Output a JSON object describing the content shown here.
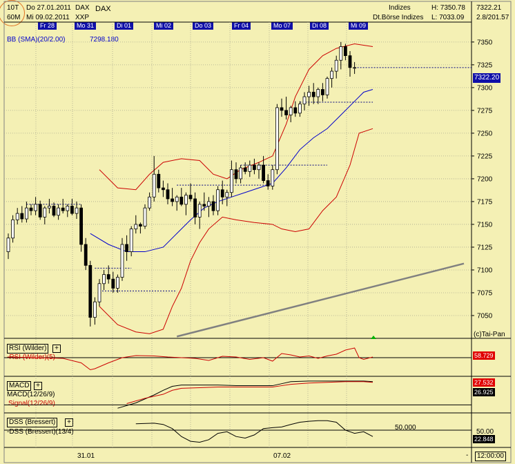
{
  "header": {
    "interval_top": "10T",
    "interval_bottom": "60M",
    "date_from": "Do 27.01.2011",
    "date_to": "Mi 09.02.2011",
    "symbol": "DAX",
    "exchange": "XXP",
    "symbol_right": "DAX",
    "category": "Indizes",
    "category_full": "Dt.Börse Indizes",
    "high": "H: 7350.78",
    "low": "L: 7033.09",
    "last": "7322.21",
    "change": "2.8/201.57"
  },
  "day_tabs": [
    "Fr 28",
    "Mo 31",
    "Di 01",
    "Mi 02",
    "Do 03",
    "Fr 04",
    "Mo 07",
    "Di 08",
    "Mi 09"
  ],
  "bb_label": "BB (SMA)(20/2.00)",
  "bb_value": "7298.180",
  "price_box": "7322.20",
  "copyright": "(c)Tai-Pan",
  "x_labels": [
    "31.01",
    "07.02"
  ],
  "time_box": "12:00:00",
  "rsi": {
    "title": "RSI (Wilder)",
    "line_label": "-RSI (Wilder)(5)",
    "value": "58.729"
  },
  "macd": {
    "title": "MACD",
    "line1": "MACD(12/26/9)",
    "line2": "Signal(12/26/9)",
    "value1": "27.532",
    "value2": "26.925"
  },
  "dss": {
    "title": "DSS (Bressert)",
    "line_label": "-DSS (Bressert)(13/4)",
    "level_label": "50.000",
    "scale_label": "50.00",
    "value": "22.848"
  },
  "colors": {
    "background": "#F4F0B4",
    "tab": "#1010A8",
    "bb": "#CC0000",
    "sma": "#0000CC",
    "trend": "#808080"
  },
  "chart_data": {
    "type": "candlestick",
    "ylim": [
      7025,
      7362
    ],
    "yticks": [
      7050,
      7075,
      7100,
      7125,
      7150,
      7175,
      7200,
      7225,
      7250,
      7275,
      7300,
      7325,
      7350
    ],
    "candles": [
      [
        7120,
        7140,
        7112,
        7135
      ],
      [
        7135,
        7160,
        7130,
        7155
      ],
      [
        7155,
        7168,
        7150,
        7162
      ],
      [
        7162,
        7170,
        7152,
        7156
      ],
      [
        7156,
        7175,
        7152,
        7168
      ],
      [
        7168,
        7172,
        7160,
        7165
      ],
      [
        7165,
        7180,
        7160,
        7172
      ],
      [
        7172,
        7176,
        7155,
        7158
      ],
      [
        7158,
        7170,
        7150,
        7168
      ],
      [
        7168,
        7178,
        7162,
        7170
      ],
      [
        7170,
        7174,
        7158,
        7160
      ],
      [
        7160,
        7172,
        7155,
        7168
      ],
      [
        7168,
        7178,
        7162,
        7165
      ],
      [
        7165,
        7172,
        7158,
        7170
      ],
      [
        7170,
        7178,
        7160,
        7162
      ],
      [
        7162,
        7175,
        7156,
        7168
      ],
      [
        7168,
        7172,
        7120,
        7128
      ],
      [
        7128,
        7135,
        7100,
        7105
      ],
      [
        7105,
        7110,
        7038,
        7048
      ],
      [
        7048,
        7070,
        7040,
        7065
      ],
      [
        7065,
        7090,
        7060,
        7085
      ],
      [
        7085,
        7100,
        7078,
        7095
      ],
      [
        7095,
        7105,
        7085,
        7090
      ],
      [
        7090,
        7098,
        7075,
        7080
      ],
      [
        7080,
        7095,
        7075,
        7092
      ],
      [
        7092,
        7135,
        7088,
        7128
      ],
      [
        7128,
        7138,
        7110,
        7120
      ],
      [
        7120,
        7148,
        7115,
        7145
      ],
      [
        7145,
        7160,
        7140,
        7150
      ],
      [
        7150,
        7152,
        7140,
        7148
      ],
      [
        7148,
        7172,
        7145,
        7168
      ],
      [
        7168,
        7185,
        7165,
        7180
      ],
      [
        7180,
        7225,
        7175,
        7205
      ],
      [
        7205,
        7210,
        7185,
        7190
      ],
      [
        7190,
        7198,
        7180,
        7188
      ],
      [
        7188,
        7195,
        7172,
        7178
      ],
      [
        7178,
        7190,
        7170,
        7175
      ],
      [
        7175,
        7182,
        7165,
        7180
      ],
      [
        7180,
        7190,
        7170,
        7172
      ],
      [
        7172,
        7185,
        7160,
        7182
      ],
      [
        7182,
        7195,
        7175,
        7178
      ],
      [
        7178,
        7185,
        7150,
        7158
      ],
      [
        7158,
        7175,
        7145,
        7172
      ],
      [
        7172,
        7185,
        7165,
        7170
      ],
      [
        7170,
        7180,
        7158,
        7175
      ],
      [
        7175,
        7182,
        7160,
        7165
      ],
      [
        7165,
        7192,
        7160,
        7188
      ],
      [
        7188,
        7198,
        7172,
        7180
      ],
      [
        7180,
        7188,
        7170,
        7185
      ],
      [
        7185,
        7220,
        7180,
        7210
      ],
      [
        7210,
        7218,
        7195,
        7200
      ],
      [
        7200,
        7215,
        7195,
        7212
      ],
      [
        7212,
        7218,
        7205,
        7208
      ],
      [
        7208,
        7220,
        7202,
        7215
      ],
      [
        7215,
        7222,
        7205,
        7210
      ],
      [
        7210,
        7218,
        7200,
        7215
      ],
      [
        7215,
        7225,
        7195,
        7198
      ],
      [
        7198,
        7205,
        7188,
        7192
      ],
      [
        7192,
        7215,
        7188,
        7210
      ],
      [
        7210,
        7282,
        7205,
        7278
      ],
      [
        7278,
        7288,
        7268,
        7275
      ],
      [
        7275,
        7290,
        7265,
        7270
      ],
      [
        7270,
        7280,
        7262,
        7278
      ],
      [
        7278,
        7285,
        7268,
        7272
      ],
      [
        7272,
        7285,
        7268,
        7282
      ],
      [
        7282,
        7295,
        7275,
        7290
      ],
      [
        7290,
        7302,
        7280,
        7295
      ],
      [
        7295,
        7305,
        7282,
        7290
      ],
      [
        7290,
        7300,
        7282,
        7298
      ],
      [
        7298,
        7305,
        7285,
        7292
      ],
      [
        7292,
        7312,
        7288,
        7310
      ],
      [
        7310,
        7322,
        7300,
        7318
      ],
      [
        7318,
        7335,
        7310,
        7330
      ],
      [
        7330,
        7350,
        7320,
        7345
      ],
      [
        7345,
        7348,
        7330,
        7335
      ],
      [
        7335,
        7340,
        7312,
        7322
      ],
      [
        7322,
        7328,
        7315,
        7322
      ]
    ],
    "dotted_levels": [
      {
        "y": 7172,
        "from": 4,
        "to": 16
      },
      {
        "y": 7102,
        "from": 19,
        "to": 27
      },
      {
        "y": 7077,
        "from": 20,
        "to": 37
      },
      {
        "y": 7193,
        "from": 37,
        "to": 58
      },
      {
        "y": 7215,
        "from": 51,
        "to": 70
      },
      {
        "y": 7284,
        "from": 64,
        "to": 80
      },
      {
        "y": 7322,
        "from": 76,
        "to": 104
      }
    ],
    "bb_upper": [
      [
        20,
        7210
      ],
      [
        24,
        7190
      ],
      [
        28,
        7188
      ],
      [
        31,
        7205
      ],
      [
        34,
        7218
      ],
      [
        38,
        7222
      ],
      [
        42,
        7220
      ],
      [
        45,
        7205
      ],
      [
        48,
        7200
      ],
      [
        51,
        7210
      ],
      [
        55,
        7218
      ],
      [
        58,
        7225
      ],
      [
        61,
        7260
      ],
      [
        63,
        7290
      ],
      [
        66,
        7320
      ],
      [
        69,
        7335
      ],
      [
        72,
        7343
      ],
      [
        76,
        7348
      ],
      [
        80,
        7345
      ]
    ],
    "bb_lower": [
      [
        20,
        7060
      ],
      [
        24,
        7040
      ],
      [
        28,
        7032
      ],
      [
        31,
        7030
      ],
      [
        34,
        7035
      ],
      [
        36,
        7060
      ],
      [
        38,
        7080
      ],
      [
        40,
        7110
      ],
      [
        42,
        7130
      ],
      [
        44,
        7145
      ],
      [
        47,
        7158
      ],
      [
        50,
        7155
      ],
      [
        54,
        7152
      ],
      [
        58,
        7150
      ],
      [
        60,
        7145
      ],
      [
        63,
        7142
      ],
      [
        66,
        7145
      ],
      [
        69,
        7165
      ],
      [
        72,
        7180
      ],
      [
        75,
        7215
      ],
      [
        77,
        7250
      ],
      [
        80,
        7255
      ]
    ],
    "sma": [
      [
        18,
        7140
      ],
      [
        22,
        7128
      ],
      [
        26,
        7120
      ],
      [
        30,
        7120
      ],
      [
        34,
        7125
      ],
      [
        37,
        7140
      ],
      [
        40,
        7155
      ],
      [
        43,
        7168
      ],
      [
        46,
        7175
      ],
      [
        49,
        7180
      ],
      [
        52,
        7185
      ],
      [
        55,
        7190
      ],
      [
        58,
        7195
      ],
      [
        61,
        7212
      ],
      [
        64,
        7232
      ],
      [
        67,
        7245
      ],
      [
        70,
        7255
      ],
      [
        73,
        7270
      ],
      [
        76,
        7285
      ],
      [
        78,
        7295
      ],
      [
        80,
        7298
      ]
    ],
    "trendline": [
      [
        37,
        7027
      ],
      [
        100,
        7107
      ]
    ],
    "rsi": [
      [
        0,
        52
      ],
      [
        6,
        50
      ],
      [
        12,
        48
      ],
      [
        16,
        35
      ],
      [
        18,
        15
      ],
      [
        19,
        18
      ],
      [
        22,
        35
      ],
      [
        25,
        50
      ],
      [
        28,
        56
      ],
      [
        32,
        55
      ],
      [
        35,
        52
      ],
      [
        38,
        50
      ],
      [
        41,
        48
      ],
      [
        44,
        42
      ],
      [
        47,
        54
      ],
      [
        50,
        52
      ],
      [
        53,
        45
      ],
      [
        56,
        50
      ],
      [
        58,
        40
      ],
      [
        60,
        62
      ],
      [
        62,
        58
      ],
      [
        64,
        52
      ],
      [
        66,
        55
      ],
      [
        68,
        48
      ],
      [
        70,
        55
      ],
      [
        72,
        60
      ],
      [
        74,
        72
      ],
      [
        76,
        78
      ],
      [
        77,
        50
      ],
      [
        78,
        45
      ],
      [
        80,
        52
      ]
    ],
    "macd": [
      [
        24,
        -5
      ],
      [
        28,
        3
      ],
      [
        32,
        15
      ],
      [
        34,
        22
      ],
      [
        36,
        28
      ],
      [
        38,
        30
      ],
      [
        42,
        30
      ],
      [
        46,
        30
      ],
      [
        50,
        29
      ],
      [
        54,
        29
      ],
      [
        58,
        29
      ],
      [
        60,
        32
      ],
      [
        62,
        35
      ],
      [
        66,
        36
      ],
      [
        70,
        36
      ],
      [
        74,
        36
      ],
      [
        78,
        36
      ],
      [
        80,
        35
      ]
    ],
    "signal": [
      [
        26,
        2
      ],
      [
        30,
        10
      ],
      [
        34,
        16
      ],
      [
        36,
        22
      ],
      [
        38,
        25
      ],
      [
        42,
        26
      ],
      [
        46,
        27
      ],
      [
        50,
        27
      ],
      [
        54,
        27
      ],
      [
        58,
        27
      ],
      [
        60,
        29
      ],
      [
        62,
        31
      ],
      [
        66,
        33
      ],
      [
        70,
        34
      ],
      [
        74,
        35
      ],
      [
        78,
        35
      ],
      [
        80,
        34
      ]
    ],
    "dss": [
      [
        28,
        70
      ],
      [
        32,
        72
      ],
      [
        34,
        68
      ],
      [
        36,
        55
      ],
      [
        38,
        30
      ],
      [
        40,
        15
      ],
      [
        42,
        12
      ],
      [
        44,
        20
      ],
      [
        46,
        40
      ],
      [
        48,
        45
      ],
      [
        50,
        30
      ],
      [
        52,
        25
      ],
      [
        54,
        35
      ],
      [
        56,
        55
      ],
      [
        58,
        58
      ],
      [
        60,
        60
      ],
      [
        62,
        68
      ],
      [
        64,
        75
      ],
      [
        66,
        78
      ],
      [
        68,
        80
      ],
      [
        70,
        80
      ],
      [
        72,
        75
      ],
      [
        74,
        50
      ],
      [
        76,
        40
      ],
      [
        78,
        45
      ],
      [
        80,
        30
      ]
    ]
  }
}
